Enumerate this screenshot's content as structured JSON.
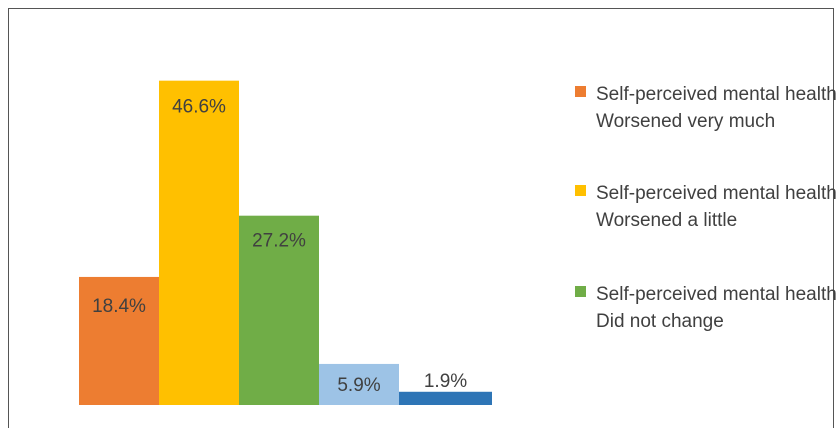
{
  "chart_data": {
    "type": "bar",
    "categories": [
      "Self-perceived mental health Worsened very much",
      "Self-perceived mental health Worsened a little",
      "Self-perceived mental health Did not change",
      "",
      ""
    ],
    "values": [
      18.4,
      46.6,
      27.2,
      5.9,
      1.9
    ],
    "value_labels": [
      "18.4%",
      "46.6%",
      "27.2%",
      "5.9%",
      "1.9%"
    ],
    "colors": [
      "#ED7D31",
      "#FFC000",
      "#70AD47",
      "#9DC3E6",
      "#2E75B6"
    ],
    "title": "",
    "xlabel": "",
    "ylabel": "",
    "ylim": [
      0,
      50
    ],
    "grid": false,
    "legend_position": "right"
  },
  "legend": [
    {
      "label": "Self-perceived mental health Worsened very much",
      "color": "#ED7D31"
    },
    {
      "label": "Self-perceived mental health Worsened a little",
      "color": "#FFC000"
    },
    {
      "label": "Self-perceived mental health Did not change",
      "color": "#70AD47"
    }
  ]
}
